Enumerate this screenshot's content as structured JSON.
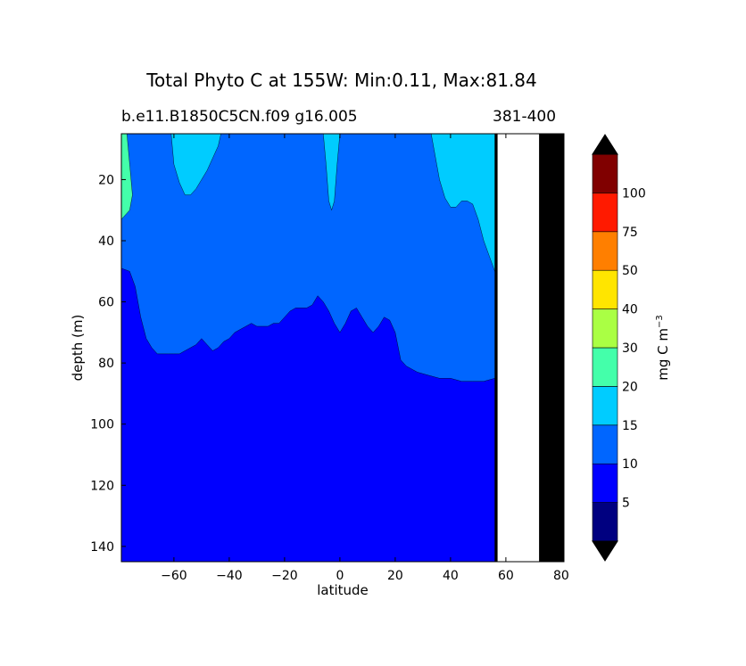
{
  "chart_data": {
    "type": "heatmap",
    "subtype": "filled-contour",
    "title": "Total Phyto C at 155W: Min:0.11, Max:81.84",
    "subtitle_left": "b.e11.B1850C5CN.f09 g16.005",
    "subtitle_right": "381-400",
    "xlabel": "latitude",
    "ylabel": "depth (m)",
    "xlim": [
      -79,
      81
    ],
    "ylim": [
      145,
      5
    ],
    "y_inverted": true,
    "x_ticks": [
      -60,
      -40,
      -20,
      0,
      20,
      40,
      60,
      80
    ],
    "y_ticks": [
      20,
      40,
      60,
      80,
      100,
      120,
      140
    ],
    "no_data_range": {
      "lat_from": 57,
      "lat_to": 72
    },
    "colorbar": {
      "label": "mg C m",
      "label_sup": "−3",
      "extend": "both",
      "ticks": [
        5,
        10,
        15,
        20,
        30,
        40,
        50,
        75,
        100
      ],
      "levels": [
        0,
        5,
        10,
        15,
        20,
        30,
        40,
        50,
        75,
        100,
        125
      ],
      "colors": [
        "#000080",
        "#0000ff",
        "#0066ff",
        "#00ccff",
        "#44ffaa",
        "#aaff44",
        "#ffe500",
        "#ff7f00",
        "#ff1a00",
        "#800000"
      ],
      "under_color": "#000000",
      "over_color": "#000000"
    },
    "contours": [
      {
        "level": 5,
        "color": "#0000ff",
        "points": [
          [
            -79,
            37
          ],
          [
            -75,
            36
          ],
          [
            -72,
            35
          ],
          [
            -68,
            37
          ],
          [
            -63,
            45
          ],
          [
            -58,
            49
          ],
          [
            -52,
            49
          ],
          [
            -46,
            49
          ],
          [
            -40,
            49
          ],
          [
            -34,
            48
          ],
          [
            -28,
            48
          ],
          [
            -22,
            48
          ],
          [
            -16,
            48
          ],
          [
            -10,
            49
          ],
          [
            -4,
            51
          ],
          [
            0,
            53
          ],
          [
            4,
            51
          ],
          [
            8,
            50
          ],
          [
            12,
            50
          ],
          [
            16,
            50
          ],
          [
            20,
            50
          ],
          [
            24,
            48
          ],
          [
            28,
            47
          ],
          [
            32,
            46
          ],
          [
            36,
            45
          ],
          [
            40,
            44
          ],
          [
            44,
            43
          ],
          [
            48,
            43
          ],
          [
            52,
            42
          ],
          [
            56,
            42
          ],
          [
            56,
            145
          ],
          [
            -79,
            145
          ]
        ]
      },
      {
        "level": 10,
        "color": "#0066ff",
        "points": [
          [
            -79,
            5
          ],
          [
            56,
            5
          ],
          [
            56,
            85
          ],
          [
            52,
            86
          ],
          [
            48,
            86
          ],
          [
            44,
            86
          ],
          [
            40,
            85
          ],
          [
            36,
            85
          ],
          [
            32,
            84
          ],
          [
            28,
            83
          ],
          [
            24,
            81
          ],
          [
            22,
            79
          ],
          [
            20,
            70
          ],
          [
            18,
            66
          ],
          [
            16,
            65
          ],
          [
            14,
            68
          ],
          [
            12,
            70
          ],
          [
            10,
            68
          ],
          [
            8,
            65
          ],
          [
            6,
            62
          ],
          [
            4,
            63
          ],
          [
            2,
            67
          ],
          [
            0,
            70
          ],
          [
            -2,
            67
          ],
          [
            -4,
            63
          ],
          [
            -6,
            60
          ],
          [
            -8,
            58
          ],
          [
            -10,
            61
          ],
          [
            -12,
            62
          ],
          [
            -14,
            62
          ],
          [
            -16,
            62
          ],
          [
            -18,
            63
          ],
          [
            -20,
            65
          ],
          [
            -22,
            67
          ],
          [
            -24,
            67
          ],
          [
            -26,
            68
          ],
          [
            -28,
            68
          ],
          [
            -30,
            68
          ],
          [
            -32,
            67
          ],
          [
            -34,
            68
          ],
          [
            -36,
            69
          ],
          [
            -38,
            70
          ],
          [
            -40,
            72
          ],
          [
            -42,
            73
          ],
          [
            -44,
            75
          ],
          [
            -46,
            76
          ],
          [
            -48,
            74
          ],
          [
            -50,
            72
          ],
          [
            -52,
            74
          ],
          [
            -54,
            75
          ],
          [
            -56,
            76
          ],
          [
            -58,
            77
          ],
          [
            -60,
            77
          ],
          [
            -62,
            77
          ],
          [
            -64,
            77
          ],
          [
            -66,
            77
          ],
          [
            -68,
            75
          ],
          [
            -70,
            72
          ],
          [
            -72,
            65
          ],
          [
            -74,
            55
          ],
          [
            -76,
            50
          ],
          [
            -79,
            49
          ]
        ]
      },
      {
        "level": 15,
        "color": "#00ccff",
        "points": [
          [
            -79,
            5
          ],
          [
            -61,
            5
          ],
          [
            -60,
            15
          ],
          [
            -58,
            21
          ],
          [
            -56,
            25
          ],
          [
            -54,
            25
          ],
          [
            -52,
            23
          ],
          [
            -50,
            20
          ],
          [
            -48,
            17
          ],
          [
            -46,
            13
          ],
          [
            -44,
            9
          ],
          [
            -43,
            5
          ],
          [
            56,
            5
          ],
          [
            56,
            50
          ],
          [
            54,
            45
          ],
          [
            52,
            40
          ],
          [
            50,
            33
          ],
          [
            48,
            28
          ],
          [
            46,
            27
          ],
          [
            44,
            27
          ],
          [
            42,
            29
          ],
          [
            40,
            29
          ],
          [
            38,
            26
          ],
          [
            36,
            20
          ],
          [
            35,
            15
          ],
          [
            34,
            10
          ],
          [
            33,
            5
          ],
          [
            0,
            5
          ],
          [
            -1,
            15
          ],
          [
            -2,
            27
          ],
          [
            -3,
            30
          ],
          [
            -4,
            27
          ],
          [
            -5,
            15
          ],
          [
            -6,
            5
          ]
        ]
      },
      {
        "level": 20,
        "color": "#44ffaa",
        "points": [
          [
            -79,
            5
          ],
          [
            -77,
            5
          ],
          [
            -76,
            15
          ],
          [
            -75,
            25
          ],
          [
            -76,
            30
          ],
          [
            -79,
            33
          ]
        ]
      }
    ]
  }
}
